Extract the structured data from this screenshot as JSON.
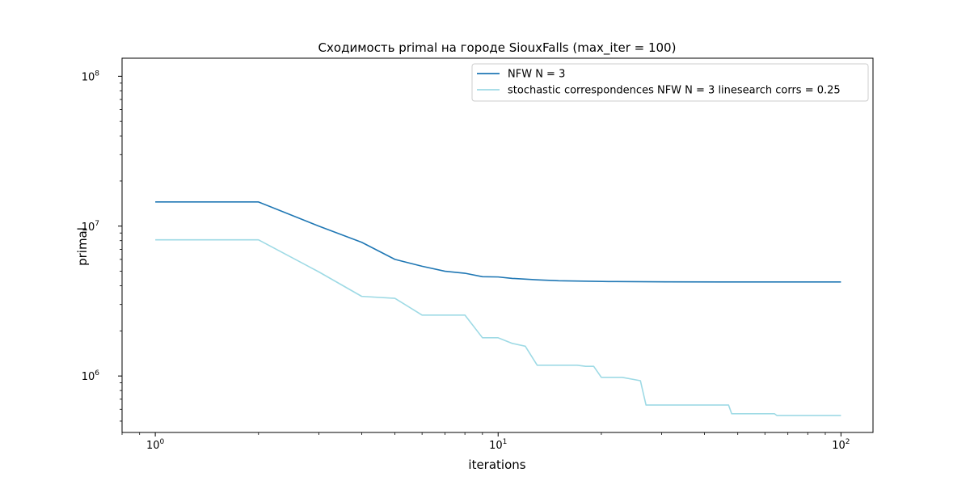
{
  "chart_data": {
    "type": "line",
    "title": "Сходимость primal на городе SiouxFalls  (max_iter = 100)",
    "xlabel": "iterations",
    "ylabel": "primal",
    "xscale": "log",
    "yscale": "log",
    "xlim": [
      0.8,
      124
    ],
    "ylim": [
      420000,
      132000000
    ],
    "legend": "top-right",
    "grid": false,
    "x_ticks": [
      {
        "value": 1,
        "base": "10",
        "exp": "0"
      },
      {
        "value": 10,
        "base": "10",
        "exp": "1"
      },
      {
        "value": 100,
        "base": "10",
        "exp": "2"
      }
    ],
    "y_ticks": [
      {
        "value": 1000000,
        "base": "10",
        "exp": "6"
      },
      {
        "value": 10000000,
        "base": "10",
        "exp": "7"
      },
      {
        "value": 100000000,
        "base": "10",
        "exp": "8"
      }
    ],
    "series": [
      {
        "name": "NFW N = 3",
        "color": "#1f77b4",
        "points": [
          [
            0,
            14500000
          ],
          [
            1,
            14500000
          ],
          [
            2,
            10000000
          ],
          [
            3,
            7800000
          ],
          [
            4,
            6000000
          ],
          [
            5,
            5400000
          ],
          [
            6,
            5000000
          ],
          [
            7,
            4850000
          ],
          [
            8,
            4600000
          ],
          [
            9,
            4580000
          ],
          [
            10,
            4480000
          ],
          [
            11,
            4430000
          ],
          [
            12,
            4380000
          ],
          [
            14,
            4320000
          ],
          [
            16,
            4300000
          ],
          [
            20,
            4270000
          ],
          [
            30,
            4250000
          ],
          [
            50,
            4240000
          ],
          [
            70,
            4240000
          ],
          [
            99,
            4240000
          ]
        ]
      },
      {
        "name": "stochastic correspondences NFW N = 3 linesearch corrs = 0.25",
        "color": "#9edae5",
        "points": [
          [
            0,
            8100000
          ],
          [
            1,
            8100000
          ],
          [
            2,
            4950000
          ],
          [
            3,
            3400000
          ],
          [
            4,
            3300000
          ],
          [
            5,
            2550000
          ],
          [
            7,
            2550000
          ],
          [
            8,
            1800000
          ],
          [
            9,
            1800000
          ],
          [
            10,
            1650000
          ],
          [
            11,
            1580000
          ],
          [
            12,
            1180000
          ],
          [
            16,
            1180000
          ],
          [
            17,
            1160000
          ],
          [
            18,
            1160000
          ],
          [
            19,
            980000
          ],
          [
            22,
            980000
          ],
          [
            25,
            930000
          ],
          [
            26,
            640000
          ],
          [
            46,
            640000
          ],
          [
            47,
            560000
          ],
          [
            63,
            560000
          ],
          [
            64,
            545000
          ],
          [
            99,
            545000
          ]
        ]
      }
    ]
  }
}
